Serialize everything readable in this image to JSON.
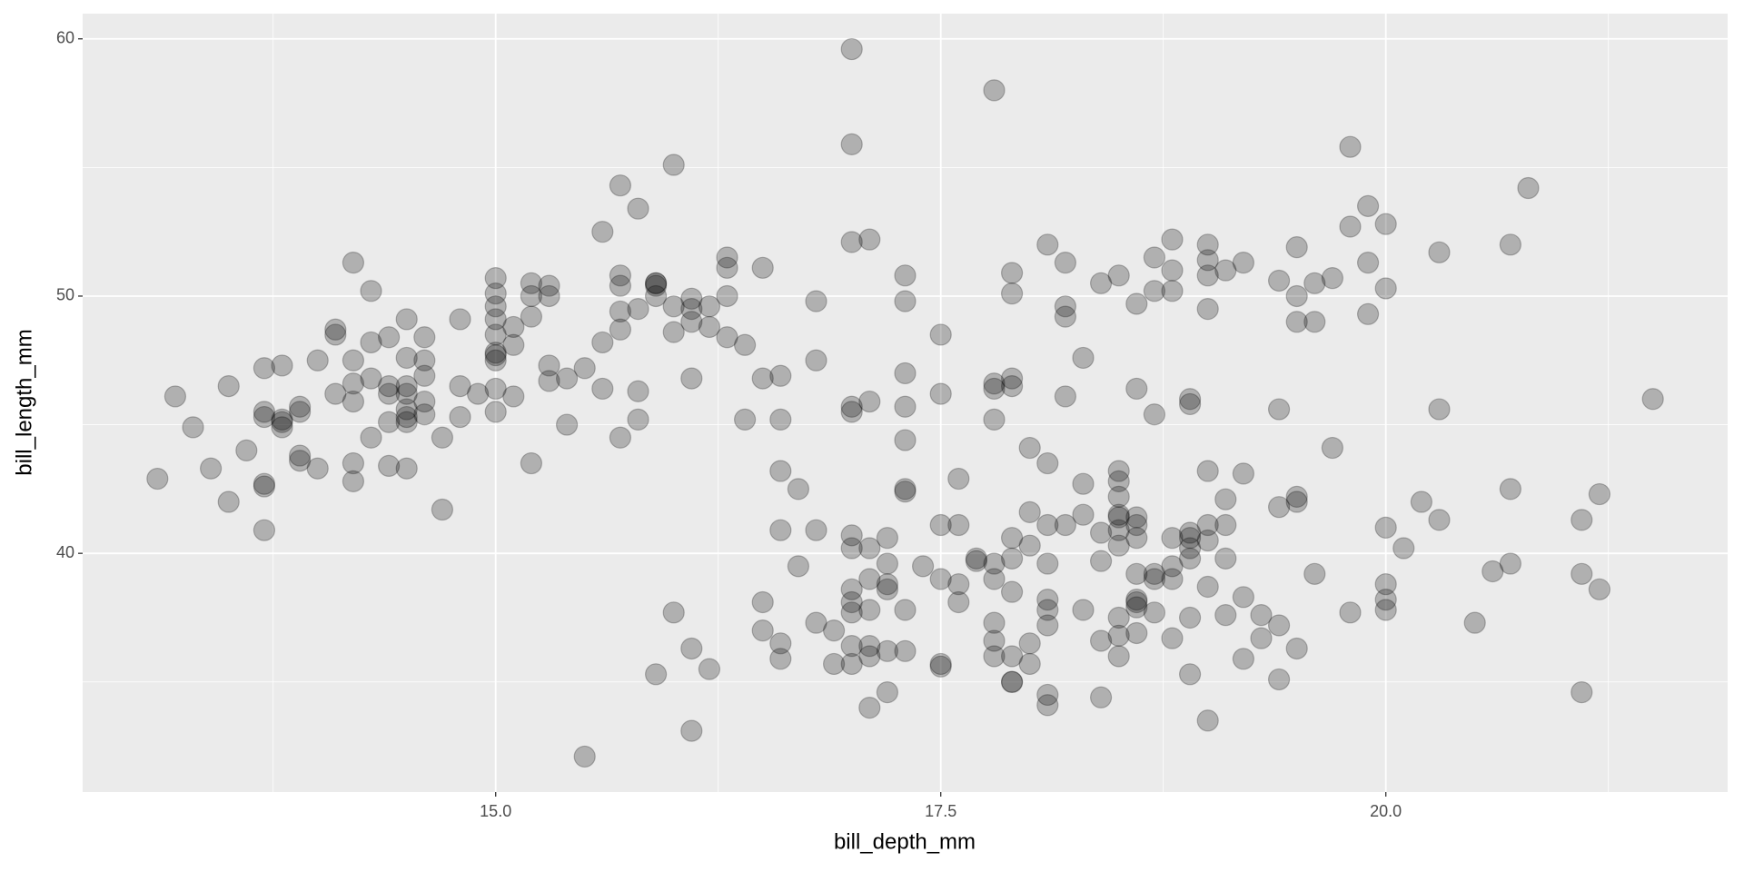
{
  "chart_data": {
    "type": "scatter",
    "x_label": "bill_depth_mm",
    "y_label": "bill_length_mm",
    "x": [
      13.1,
      13.2,
      13.3,
      13.4,
      13.5,
      13.5,
      13.6,
      13.7,
      13.7,
      13.7,
      13.7,
      13.7,
      13.7,
      13.8,
      13.8,
      13.8,
      13.8,
      13.9,
      13.9,
      13.9,
      13.9,
      14.0,
      14.0,
      14.1,
      14.1,
      14.1,
      14.2,
      14.2,
      14.2,
      14.2,
      14.2,
      14.2,
      14.3,
      14.3,
      14.3,
      14.3,
      14.4,
      14.4,
      14.4,
      14.4,
      14.4,
      14.5,
      14.5,
      14.5,
      14.5,
      14.5,
      14.5,
      14.5,
      14.5,
      14.6,
      14.6,
      14.6,
      14.6,
      14.6,
      14.7,
      14.7,
      14.8,
      14.8,
      14.8,
      14.9,
      15.0,
      15.0,
      15.0,
      15.0,
      15.0,
      15.0,
      15.0,
      15.0,
      15.0,
      15.0,
      15.1,
      15.1,
      15.1,
      15.2,
      15.2,
      15.2,
      15.2,
      15.3,
      15.3,
      15.3,
      15.3,
      15.4,
      15.4,
      15.5,
      15.5,
      15.6,
      15.6,
      15.6,
      15.7,
      15.7,
      15.7,
      15.7,
      15.7,
      15.7,
      15.8,
      15.8,
      15.8,
      15.8,
      15.9,
      15.9,
      15.9,
      15.9,
      15.9,
      16.0,
      16.0,
      16.0,
      16.0,
      16.1,
      16.1,
      16.1,
      16.1,
      16.1,
      16.1,
      16.2,
      16.2,
      16.2,
      16.3,
      16.3,
      16.3,
      16.3,
      16.4,
      16.4,
      16.5,
      16.5,
      16.5,
      16.5,
      16.6,
      16.6,
      16.6,
      16.6,
      16.6,
      16.6,
      16.7,
      16.7,
      16.8,
      16.8,
      16.8,
      16.8,
      16.9,
      16.9,
      17.0,
      17.0,
      17.0,
      17.0,
      17.0,
      17.0,
      17.0,
      17.0,
      17.0,
      17.0,
      17.0,
      17.0,
      17.1,
      17.1,
      17.1,
      17.1,
      17.1,
      17.1,
      17.1,
      17.1,
      17.2,
      17.2,
      17.2,
      17.2,
      17.2,
      17.2,
      17.3,
      17.3,
      17.3,
      17.3,
      17.3,
      17.3,
      17.3,
      17.3,
      17.3,
      17.4,
      17.5,
      17.5,
      17.5,
      17.5,
      17.5,
      17.5,
      17.6,
      17.6,
      17.6,
      17.6,
      17.7,
      17.7,
      17.8,
      17.8,
      17.8,
      17.8,
      17.8,
      17.8,
      17.8,
      17.8,
      17.8,
      17.9,
      17.9,
      17.9,
      17.9,
      17.9,
      17.9,
      17.9,
      17.9,
      17.9,
      17.9,
      18.0,
      18.0,
      18.0,
      18.0,
      18.0,
      18.1,
      18.1,
      18.1,
      18.1,
      18.1,
      18.1,
      18.1,
      18.1,
      18.1,
      18.2,
      18.2,
      18.2,
      18.2,
      18.2,
      18.3,
      18.3,
      18.3,
      18.3,
      18.4,
      18.4,
      18.4,
      18.4,
      18.4,
      18.5,
      18.5,
      18.5,
      18.5,
      18.5,
      18.5,
      18.5,
      18.5,
      18.5,
      18.5,
      18.5,
      18.6,
      18.6,
      18.6,
      18.6,
      18.6,
      18.6,
      18.6,
      18.6,
      18.6,
      18.6,
      18.7,
      18.7,
      18.7,
      18.7,
      18.7,
      18.7,
      18.8,
      18.8,
      18.8,
      18.8,
      18.8,
      18.8,
      18.8,
      18.9,
      18.9,
      18.9,
      18.9,
      18.9,
      18.9,
      18.9,
      18.9,
      19.0,
      19.0,
      19.0,
      19.0,
      19.0,
      19.0,
      19.0,
      19.0,
      19.0,
      19.1,
      19.1,
      19.1,
      19.1,
      19.1,
      19.2,
      19.2,
      19.2,
      19.2,
      19.3,
      19.3,
      19.4,
      19.4,
      19.4,
      19.4,
      19.4,
      19.5,
      19.5,
      19.5,
      19.5,
      19.5,
      19.5,
      19.6,
      19.6,
      19.6,
      19.7,
      19.7,
      19.8,
      19.8,
      19.8,
      19.9,
      19.9,
      19.9,
      20.0,
      20.0,
      20.0,
      20.0,
      20.0,
      20.0,
      20.1,
      20.2,
      20.3,
      20.3,
      20.3,
      20.5,
      20.6,
      20.7,
      20.7,
      20.7,
      20.8,
      21.1,
      21.1,
      21.1,
      21.2,
      21.2,
      21.5
    ],
    "values": [
      42.9,
      46.1,
      44.9,
      43.3,
      46.5,
      42.0,
      44.0,
      47.2,
      45.5,
      45.3,
      42.7,
      42.6,
      40.9,
      47.3,
      45.2,
      44.9,
      45.1,
      45.7,
      45.5,
      43.8,
      43.6,
      47.5,
      43.3,
      48.7,
      48.5,
      46.2,
      51.3,
      47.5,
      46.6,
      45.9,
      43.5,
      42.8,
      50.2,
      48.2,
      46.8,
      44.5,
      48.4,
      46.5,
      46.2,
      45.1,
      43.4,
      49.1,
      47.6,
      46.5,
      46.2,
      45.6,
      45.1,
      45.3,
      43.3,
      48.4,
      47.5,
      46.9,
      45.9,
      45.4,
      44.5,
      41.7,
      49.1,
      46.5,
      45.3,
      46.2,
      50.7,
      50.1,
      49.6,
      49.1,
      48.5,
      47.8,
      47.7,
      47.5,
      46.4,
      45.5,
      48.8,
      48.1,
      46.1,
      50.5,
      50.0,
      49.2,
      43.5,
      50.4,
      50.0,
      47.3,
      46.7,
      46.8,
      45.0,
      47.2,
      32.1,
      52.5,
      48.2,
      46.4,
      54.3,
      50.8,
      50.4,
      49.4,
      48.7,
      44.5,
      53.4,
      49.5,
      46.3,
      45.2,
      50.5,
      50.5,
      50.4,
      50.0,
      35.3,
      55.1,
      49.6,
      48.6,
      37.7,
      49.9,
      49.5,
      49.0,
      46.8,
      36.3,
      33.1,
      49.6,
      48.8,
      35.5,
      51.5,
      51.1,
      50.0,
      48.4,
      48.1,
      45.2,
      51.1,
      46.8,
      38.1,
      37.0,
      46.9,
      45.2,
      43.2,
      40.9,
      36.5,
      35.9,
      42.5,
      39.5,
      49.8,
      47.5,
      40.9,
      37.3,
      37.0,
      35.7,
      59.6,
      55.9,
      52.1,
      45.7,
      45.5,
      40.7,
      40.2,
      38.6,
      38.1,
      37.7,
      36.4,
      35.7,
      52.2,
      45.9,
      40.2,
      39.0,
      37.8,
      36.4,
      36.0,
      34.0,
      40.6,
      39.6,
      38.8,
      38.6,
      36.2,
      34.6,
      50.8,
      49.8,
      47.0,
      45.7,
      44.4,
      42.5,
      42.4,
      37.8,
      36.2,
      39.5,
      48.5,
      46.2,
      41.1,
      39.0,
      35.7,
      35.6,
      42.9,
      41.1,
      38.8,
      38.1,
      39.7,
      39.8,
      58.0,
      46.6,
      46.4,
      45.2,
      39.6,
      39.0,
      37.3,
      36.6,
      36.0,
      50.9,
      50.1,
      46.8,
      46.5,
      40.6,
      39.8,
      38.5,
      36.0,
      35.0,
      35.0,
      44.1,
      41.6,
      40.3,
      36.5,
      35.7,
      52.0,
      43.5,
      41.1,
      39.6,
      38.2,
      37.8,
      37.2,
      34.5,
      34.1,
      51.3,
      49.6,
      49.2,
      46.1,
      41.1,
      47.6,
      42.7,
      41.5,
      37.8,
      50.5,
      40.8,
      39.7,
      36.6,
      34.4,
      50.8,
      43.2,
      42.8,
      42.2,
      41.5,
      41.4,
      40.9,
      40.3,
      37.5,
      36.8,
      36.0,
      49.7,
      46.4,
      41.4,
      41.1,
      40.6,
      39.2,
      38.2,
      38.1,
      37.9,
      36.9,
      51.5,
      50.2,
      45.4,
      39.2,
      39.0,
      37.7,
      52.2,
      51.0,
      50.2,
      40.6,
      39.5,
      39.0,
      36.7,
      46.0,
      45.8,
      40.8,
      40.6,
      40.2,
      39.8,
      37.5,
      35.3,
      52.0,
      51.4,
      50.8,
      49.5,
      43.2,
      41.1,
      40.5,
      38.7,
      33.5,
      51.0,
      42.1,
      41.1,
      39.8,
      37.6,
      51.3,
      43.1,
      38.3,
      35.9,
      37.6,
      36.7,
      50.6,
      45.6,
      41.8,
      37.2,
      35.1,
      51.9,
      50.0,
      49.0,
      42.2,
      42.0,
      36.3,
      50.5,
      49.0,
      39.2,
      50.7,
      44.1,
      55.8,
      52.7,
      37.7,
      53.5,
      51.3,
      49.3,
      52.8,
      50.3,
      41.0,
      38.8,
      38.2,
      37.8,
      40.2,
      42.0,
      51.7,
      45.6,
      41.3,
      37.3,
      39.3,
      52.0,
      42.5,
      39.6,
      54.2,
      41.3,
      39.2,
      34.6,
      42.3,
      38.6,
      46.0
    ],
    "color": "#000000",
    "alpha": 0.25,
    "xlim": [
      12.68,
      21.92
    ],
    "ylim": [
      30.72,
      60.98
    ],
    "xticks": [
      {
        "value": 15,
        "label": "15.0"
      },
      17.5,
      {
        "value": 20,
        "label": "20.0"
      }
    ],
    "yticks": [
      40,
      50,
      60
    ],
    "x_minor_grid": [
      13.75,
      16.25,
      18.75,
      21.25
    ],
    "y_minor_grid": [
      35,
      45,
      55
    ],
    "grid": true
  }
}
